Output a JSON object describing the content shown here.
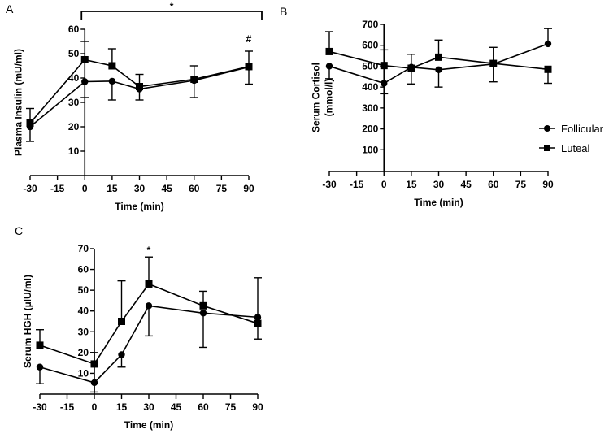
{
  "colors": {
    "line": "#000000",
    "background": "#ffffff"
  },
  "legend": [
    {
      "label": "Follicular",
      "marker": "circle"
    },
    {
      "label": "Luteal",
      "marker": "square"
    }
  ],
  "chart_data": [
    {
      "panel": "A",
      "type": "line",
      "xlabel": "Time (min)",
      "ylabel": [
        "Plasma Insulin (mU/ml)"
      ],
      "x": [
        -30,
        0,
        15,
        30,
        60,
        90
      ],
      "xticks": [
        "-30",
        "-15",
        "0",
        "15",
        "30",
        "45",
        "60",
        "75",
        "90"
      ],
      "xlim": [
        -30,
        90
      ],
      "ylim": [
        0,
        60
      ],
      "yticks": [
        "10",
        "20",
        "30",
        "40",
        "50",
        "60"
      ],
      "series": [
        {
          "name": "Follicular",
          "values": [
            20,
            38.5,
            38.7,
            35.5,
            39,
            44.5
          ],
          "err_low": [
            14,
            32,
            31,
            31,
            32,
            37.5
          ]
        },
        {
          "name": "Luteal",
          "values": [
            21.5,
            47.5,
            45,
            36.5,
            39.5,
            44.7
          ],
          "err_high": [
            27.5,
            55,
            52,
            41.5,
            45,
            51
          ]
        }
      ],
      "annotations": [
        {
          "text": "*",
          "type": "bracket",
          "from": 0,
          "to": 90
        },
        {
          "text": "#",
          "x": 90
        }
      ]
    },
    {
      "panel": "B",
      "type": "line",
      "xlabel": "Time (min)",
      "ylabel": [
        "Serum Cortisol",
        "(mmol/l)"
      ],
      "x": [
        -30,
        0,
        15,
        30,
        60,
        90
      ],
      "xticks": [
        "-30",
        "-15",
        "0",
        "15",
        "30",
        "45",
        "60",
        "75",
        "90"
      ],
      "xlim": [
        -30,
        90
      ],
      "ylim": [
        0,
        700
      ],
      "yticks": [
        "100",
        "200",
        "300",
        "400",
        "500",
        "600",
        "700"
      ],
      "series": [
        {
          "name": "Follicular",
          "values": [
            500,
            418,
            495,
            483,
            510,
            607
          ],
          "err_low": [
            440,
            368,
            415,
            400,
            425,
            null
          ],
          "err_high": [
            null,
            null,
            null,
            null,
            null,
            680
          ]
        },
        {
          "name": "Luteal",
          "values": [
            570,
            503,
            490,
            543,
            513,
            485
          ],
          "err_high": [
            665,
            578,
            557,
            625,
            590,
            null
          ],
          "err_low": [
            null,
            null,
            null,
            null,
            null,
            418
          ]
        }
      ],
      "legend_position": "right",
      "annotations": []
    },
    {
      "panel": "C",
      "type": "line",
      "xlabel": "Time (min)",
      "ylabel": [
        "Serum HGH (µIU/ml)"
      ],
      "x": [
        -30,
        0,
        15,
        30,
        60,
        90
      ],
      "xticks": [
        "-30",
        "-15",
        "0",
        "15",
        "30",
        "45",
        "60",
        "75",
        "90"
      ],
      "xlim": [
        -30,
        90
      ],
      "ylim": [
        0,
        70
      ],
      "yticks": [
        "10",
        "20",
        "30",
        "40",
        "50",
        "60",
        "70"
      ],
      "series": [
        {
          "name": "Follicular",
          "values": [
            13,
            5.5,
            19,
            42.5,
            39,
            37
          ],
          "err_low": [
            5,
            1,
            13,
            28,
            22.5,
            null
          ],
          "err_high": [
            null,
            null,
            null,
            null,
            null,
            56
          ]
        },
        {
          "name": "Luteal",
          "values": [
            23.5,
            14.5,
            35,
            53,
            42.5,
            34
          ],
          "err_high": [
            31,
            20,
            54.5,
            66,
            49.5,
            null
          ],
          "err_low": [
            null,
            null,
            null,
            null,
            null,
            26.5
          ]
        }
      ],
      "annotations": [
        {
          "text": "*",
          "x": 30
        }
      ]
    }
  ]
}
